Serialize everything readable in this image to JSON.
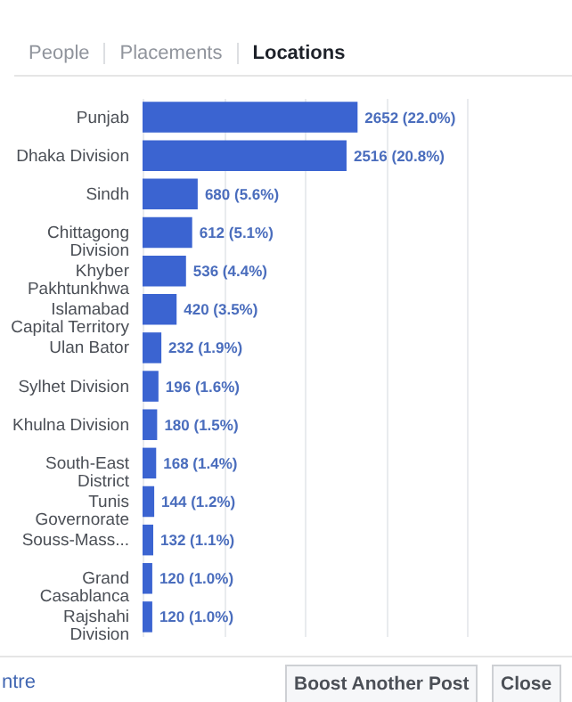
{
  "chart_data": {
    "type": "bar",
    "orientation": "horizontal",
    "categories": [
      "Punjab",
      "Dhaka Division",
      "Sindh",
      "Chittagong Division",
      "Khyber Pakhtunkhwa",
      "Islamabad Capital Territory",
      "Ulan Bator",
      "Sylhet Division",
      "Khulna Division",
      "South-East District",
      "Tunis Governorate",
      "Souss-Mass...",
      "Grand Casablanca",
      "Rajshahi Division"
    ],
    "values": [
      2652,
      2516,
      680,
      612,
      536,
      420,
      232,
      196,
      180,
      168,
      144,
      132,
      120,
      120
    ],
    "value_labels": [
      "2652 (22.0%)",
      "2516 (20.8%)",
      "680 (5.6%)",
      "612 (5.1%)",
      "536 (4.4%)",
      "420 (3.5%)",
      "232 (1.9%)",
      "196 (1.6%)",
      "180 (1.5%)",
      "168 (1.4%)",
      "144 (1.2%)",
      "132 (1.1%)",
      "120 (1.0%)",
      "120 (1.0%)"
    ],
    "color": "#3b64d1",
    "xlim": [
      0,
      4000
    ],
    "xticks": [
      {
        "value": 0,
        "label": null
      },
      {
        "value": 1000,
        "label": null
      },
      {
        "value": 2000,
        "label": null
      },
      {
        "value": 3000,
        "label": null
      },
      {
        "value": 4000,
        "label": null
      }
    ],
    "grid": "x",
    "tick_labels": "y",
    "annotations": [
      "People",
      "Placements",
      "Locations",
      "ntre",
      "Boost Another Post",
      "Close"
    ]
  }
}
